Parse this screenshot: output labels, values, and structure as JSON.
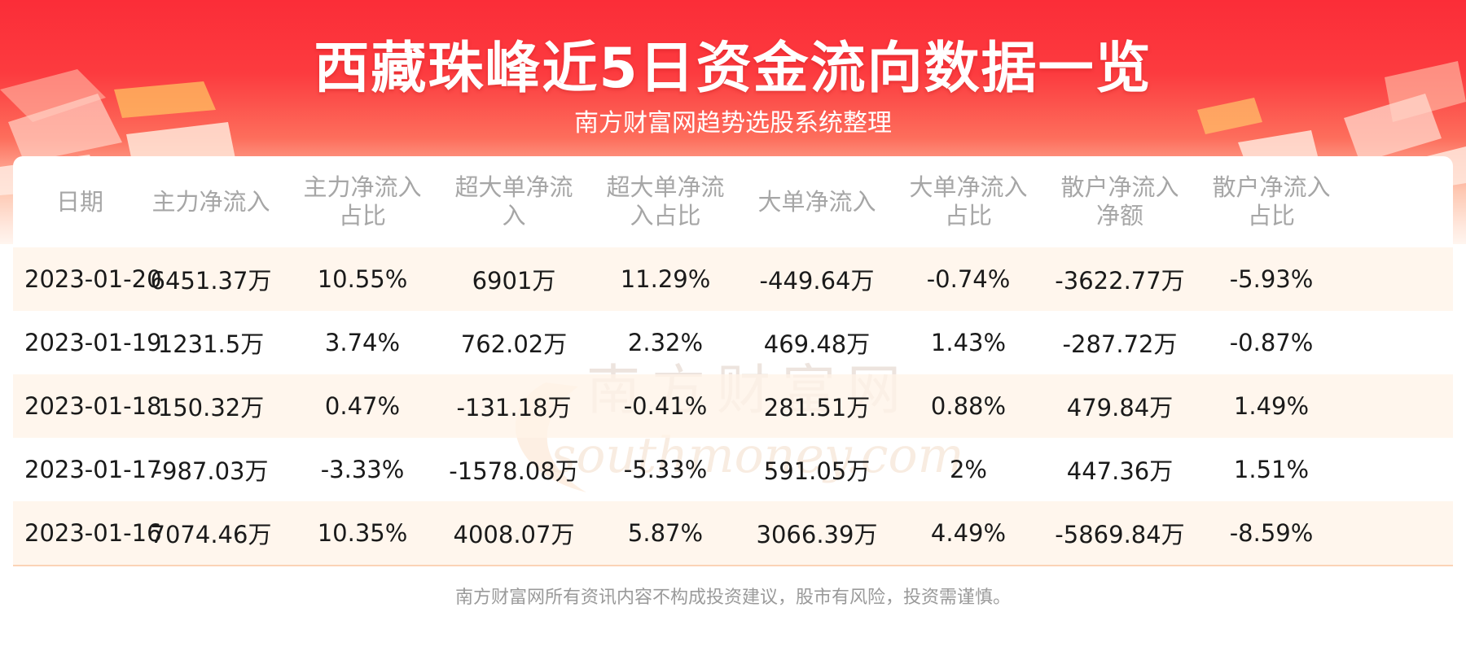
{
  "header": {
    "title": "西藏珠峰近5日资金流向数据一览",
    "subtitle": "南方财富网趋势选股系统整理"
  },
  "watermark": {
    "cn": "南方财富网",
    "en": "southmoney.com"
  },
  "table": {
    "columns": [
      [
        "日期"
      ],
      [
        "主力净流入"
      ],
      [
        "主力净流入",
        "占比"
      ],
      [
        "超大单净流",
        "入"
      ],
      [
        "超大单净流",
        "入占比"
      ],
      [
        "大单净流入"
      ],
      [
        "大单净流入",
        "占比"
      ],
      [
        "散户净流入",
        "净额"
      ],
      [
        "散户净流入",
        "占比"
      ]
    ],
    "rows": [
      [
        "2023-01-20",
        "6451.37万",
        "10.55%",
        "6901万",
        "11.29%",
        "-449.64万",
        "-0.74%",
        "-3622.77万",
        "-5.93%"
      ],
      [
        "2023-01-19",
        "1231.5万",
        "3.74%",
        "762.02万",
        "2.32%",
        "469.48万",
        "1.43%",
        "-287.72万",
        "-0.87%"
      ],
      [
        "2023-01-18",
        "150.32万",
        "0.47%",
        "-131.18万",
        "-0.41%",
        "281.51万",
        "0.88%",
        "479.84万",
        "1.49%"
      ],
      [
        "2023-01-17",
        "-987.03万",
        "-3.33%",
        "-1578.08万",
        "-5.33%",
        "591.05万",
        "2%",
        "447.36万",
        "1.51%"
      ],
      [
        "2023-01-16",
        "7074.46万",
        "10.35%",
        "4008.07万",
        "5.87%",
        "3066.39万",
        "4.49%",
        "-5869.84万",
        "-8.59%"
      ]
    ]
  },
  "footer": {
    "disclaimer": "南方财富网所有资讯内容不构成投资建议，股市有风险，投资需谨慎。"
  },
  "colors": {
    "banner_red": "#fb2d38",
    "row_alt": "#fff3e8",
    "header_text": "#a6a6a6",
    "cell_text": "#1a1a1a",
    "divider": "#fbd3b6"
  }
}
